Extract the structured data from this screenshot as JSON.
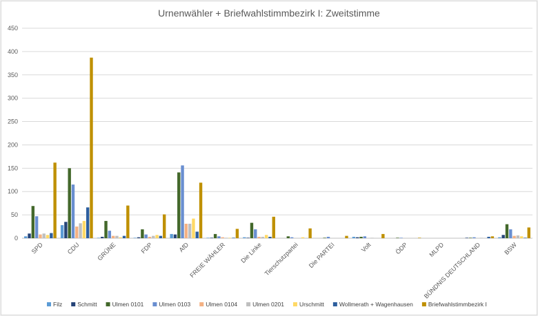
{
  "chart_data": {
    "type": "bar",
    "title": "Urnenwähler + Briefwahlstimmbezirk I: Zweitstimme",
    "xlabel": "",
    "ylabel": "",
    "ylim": [
      0,
      450
    ],
    "yticks": [
      0,
      50,
      100,
      150,
      200,
      250,
      300,
      350,
      400,
      450
    ],
    "grid": true,
    "legend_position": "bottom",
    "categories": [
      "SPD",
      "CDU",
      "GRÜNE",
      "FDP",
      "AfD",
      "FREIE WÄHLER",
      "Die Linke",
      "Tierschutzpartei",
      "Die PARTEI",
      "Volt",
      "ÖDP",
      "MLPD",
      "BÜNDNIS DEUTSCHLAND",
      "BSW"
    ],
    "series": [
      {
        "name": "Filz",
        "color": "#5b9bd5",
        "values": [
          4,
          28,
          1,
          1,
          9,
          1,
          2,
          0,
          0,
          3,
          0,
          0,
          0,
          2
        ]
      },
      {
        "name": "Schmitt",
        "color": "#264478",
        "values": [
          10,
          35,
          3,
          2,
          8,
          1,
          1,
          0,
          0,
          2,
          0,
          0,
          1,
          7
        ]
      },
      {
        "name": "Ulmen 0101",
        "color": "#43682b",
        "values": [
          69,
          150,
          37,
          19,
          141,
          9,
          33,
          4,
          1,
          3,
          1,
          0,
          1,
          30
        ]
      },
      {
        "name": "Ulmen 0103",
        "color": "#698ed0",
        "values": [
          47,
          115,
          16,
          8,
          156,
          4,
          19,
          2,
          3,
          4,
          1,
          0,
          2,
          19
        ]
      },
      {
        "name": "Ulmen 0104",
        "color": "#f4b183",
        "values": [
          8,
          25,
          5,
          3,
          31,
          2,
          3,
          0,
          0,
          0,
          0,
          0,
          0,
          5
        ]
      },
      {
        "name": "Ulmen 0201",
        "color": "#bfbfbf",
        "values": [
          10,
          32,
          5,
          5,
          31,
          1,
          3,
          0,
          0,
          1,
          0,
          0,
          1,
          6
        ]
      },
      {
        "name": "Urschmitt",
        "color": "#ffd966",
        "values": [
          7,
          37,
          2,
          7,
          42,
          1,
          7,
          2,
          0,
          0,
          0,
          0,
          0,
          4
        ]
      },
      {
        "name": "Wollmerath + Wagenhausen",
        "color": "#2e5f9e",
        "values": [
          11,
          66,
          5,
          5,
          14,
          1,
          3,
          0,
          0,
          0,
          0,
          0,
          3,
          1
        ]
      },
      {
        "name": "Briefwahlstimmbezirk I",
        "color": "#bf9000",
        "values": [
          162,
          387,
          70,
          51,
          119,
          20,
          46,
          21,
          5,
          9,
          1,
          0,
          4,
          23
        ]
      }
    ]
  }
}
